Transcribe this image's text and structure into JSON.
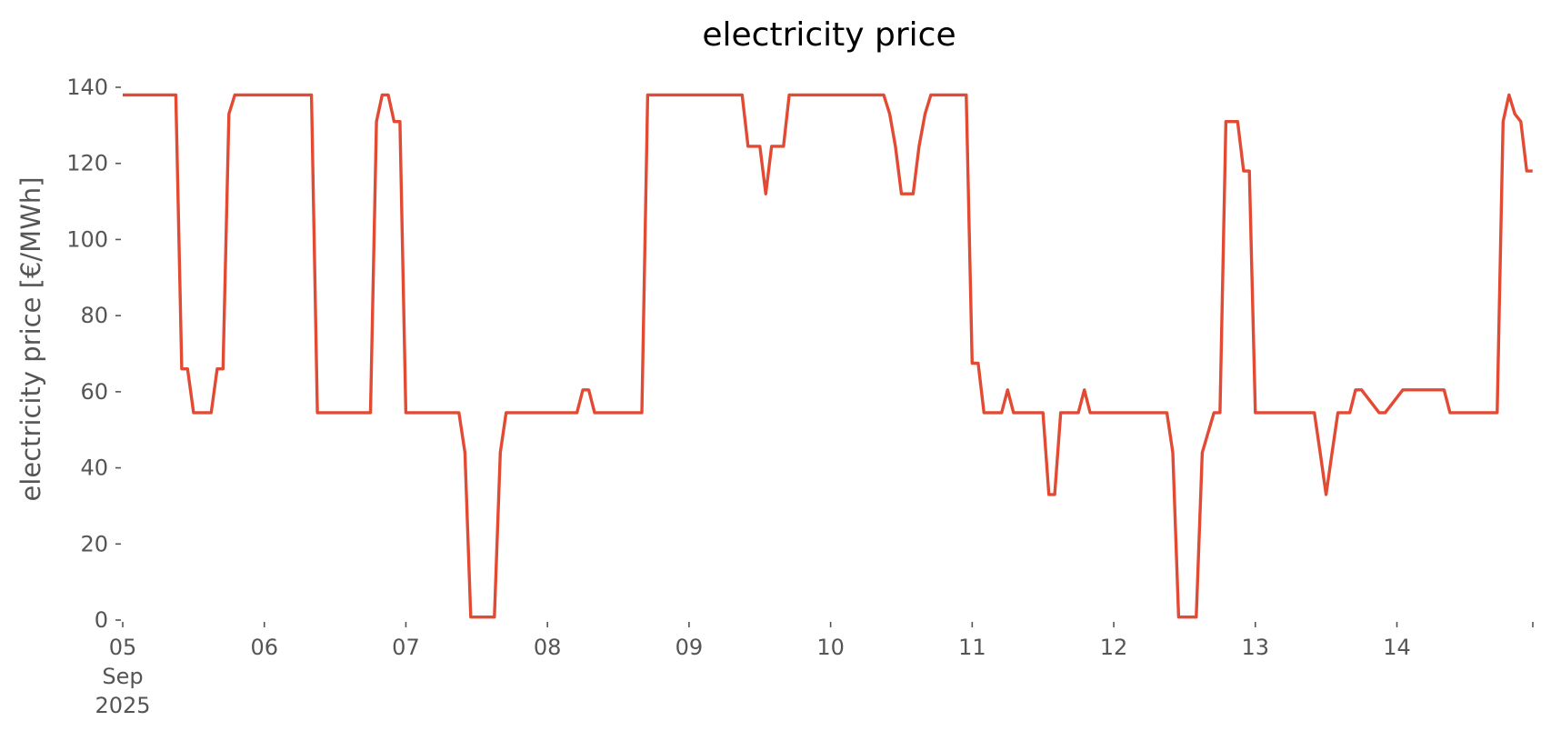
{
  "chart_data": {
    "type": "line",
    "title": "electricity price",
    "xlabel": "",
    "ylabel": "electricity price [€/MWh]",
    "ylim": [
      0,
      140
    ],
    "yticks": [
      {
        "value": 0,
        "label": "0"
      },
      {
        "value": 20,
        "label": "20"
      },
      {
        "value": 40,
        "label": "40"
      },
      {
        "value": 60,
        "label": "60"
      },
      {
        "value": 80,
        "label": "80"
      },
      {
        "value": 100,
        "label": "100"
      },
      {
        "value": 120,
        "label": "120"
      },
      {
        "value": 140,
        "label": "140"
      }
    ],
    "xlim_days": [
      0,
      9.96
    ],
    "xticks": [
      {
        "day": 0,
        "lines": [
          "05",
          "Sep",
          "2025"
        ]
      },
      {
        "day": 1,
        "lines": [
          "06"
        ]
      },
      {
        "day": 2,
        "lines": [
          "07"
        ]
      },
      {
        "day": 3,
        "lines": [
          "08"
        ]
      },
      {
        "day": 4,
        "lines": [
          "09"
        ]
      },
      {
        "day": 5,
        "lines": [
          "10"
        ]
      },
      {
        "day": 6,
        "lines": [
          "11"
        ]
      },
      {
        "day": 7,
        "lines": [
          "12"
        ]
      },
      {
        "day": 8,
        "lines": [
          "13"
        ]
      },
      {
        "day": 9,
        "lines": [
          "14"
        ]
      },
      {
        "day": 9.96,
        "lines": [
          ""
        ]
      }
    ],
    "grid": false,
    "color": "#e24a33",
    "series": [
      {
        "name": "",
        "x_days": [
          0,
          0.375,
          0.417,
          0.458,
          0.5,
          0.625,
          0.667,
          0.708,
          0.75,
          0.792,
          1.333,
          1.375,
          1.75,
          1.792,
          1.833,
          1.875,
          1.917,
          1.958,
          2.0,
          2.375,
          2.417,
          2.458,
          2.5,
          2.625,
          2.667,
          2.708,
          3.208,
          3.25,
          3.292,
          3.333,
          3.667,
          3.708,
          4.375,
          4.417,
          4.5,
          4.542,
          4.583,
          4.667,
          4.708,
          5.375,
          5.417,
          5.458,
          5.5,
          5.583,
          5.625,
          5.667,
          5.708,
          5.958,
          6.0,
          6.042,
          6.083,
          6.208,
          6.25,
          6.292,
          6.5,
          6.542,
          6.583,
          6.625,
          6.75,
          6.792,
          6.833,
          7.375,
          7.417,
          7.458,
          7.5,
          7.583,
          7.625,
          7.708,
          7.75,
          7.792,
          7.875,
          7.917,
          7.958,
          8.0,
          8.417,
          8.458,
          8.5,
          8.542,
          8.583,
          8.667,
          8.708,
          8.75,
          8.875,
          8.917,
          9.042,
          9.083,
          9.333,
          9.375,
          9.708,
          9.75,
          9.792,
          9.833,
          9.875,
          9.917,
          9.958
        ],
        "values": [
          138,
          138,
          66,
          66,
          54.5,
          54.5,
          66,
          66,
          133,
          138,
          138,
          54.5,
          54.5,
          131,
          138,
          138,
          131,
          131,
          54.5,
          54.5,
          44,
          0.8,
          0.8,
          0.8,
          44,
          54.5,
          54.5,
          60.5,
          60.5,
          54.5,
          54.5,
          138,
          138,
          124.5,
          124.5,
          112,
          124.5,
          124.5,
          138,
          138,
          133,
          124.5,
          112,
          112,
          124.5,
          133,
          138,
          138,
          67.5,
          67.5,
          54.5,
          54.5,
          60.5,
          54.5,
          54.5,
          33,
          33,
          54.5,
          54.5,
          60.5,
          54.5,
          54.5,
          44,
          0.8,
          0.8,
          0.8,
          44,
          54.5,
          54.5,
          131,
          131,
          118,
          118,
          54.5,
          54.5,
          44,
          33,
          44,
          54.5,
          54.5,
          60.5,
          60.5,
          54.5,
          54.5,
          60.5,
          60.5,
          60.5,
          54.5,
          54.5,
          131,
          138,
          133,
          131,
          118,
          118
        ]
      }
    ]
  }
}
